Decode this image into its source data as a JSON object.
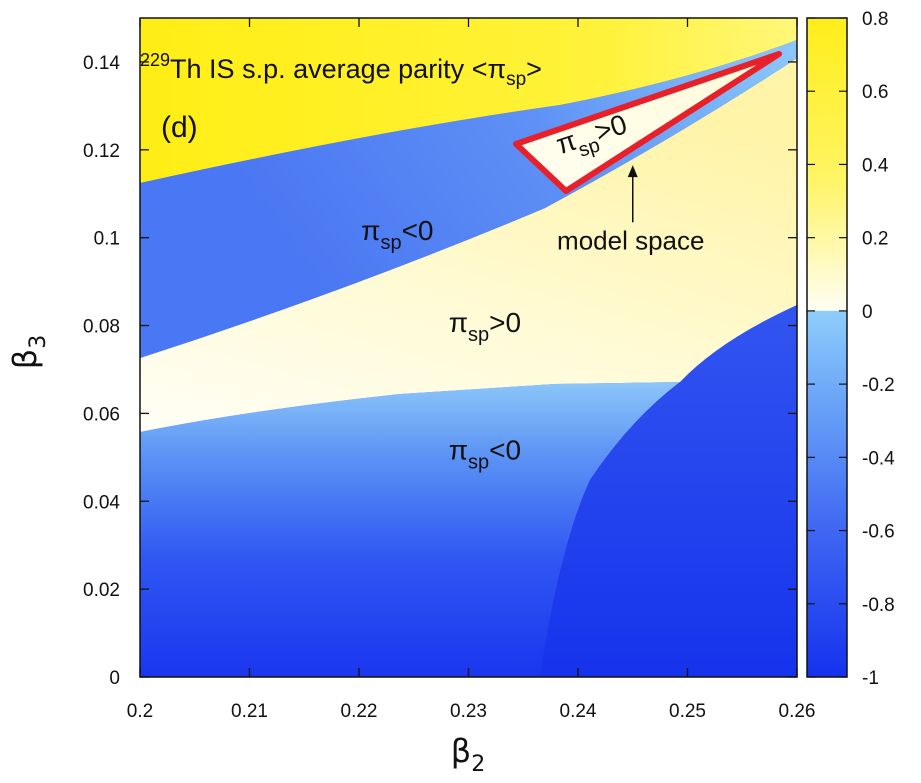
{
  "chart_data": {
    "type": "heatmap",
    "panel_label": "(d)",
    "title": {
      "superscript": "229",
      "text": "Th IS s.p. average parity <π",
      "subscript": "sp",
      "suffix": ">"
    },
    "xlabel": {
      "symbol": "β",
      "sub": "2"
    },
    "ylabel": {
      "symbol": "β",
      "sub": "3"
    },
    "xlim": [
      0.2,
      0.26
    ],
    "ylim": [
      0,
      0.15
    ],
    "x_ticks": [
      0.2,
      0.21,
      0.22,
      0.23,
      0.24,
      0.25,
      0.26
    ],
    "x_tick_labels": [
      "0.2",
      "0.21",
      "0.22",
      "0.23",
      "0.24",
      "0.25",
      "0.26"
    ],
    "y_ticks": [
      0,
      0.02,
      0.04,
      0.06,
      0.08,
      0.1,
      0.12,
      0.14
    ],
    "y_tick_labels": [
      "0",
      "0.02",
      "0.04",
      "0.06",
      "0.08",
      "0.1",
      "0.12",
      "0.14"
    ],
    "colorbar": {
      "range": [
        -1,
        0.8
      ],
      "ticks": [
        0.8,
        0.6,
        0.4,
        0.2,
        0,
        -0.2,
        -0.4,
        -0.6,
        -0.8,
        -1
      ],
      "tick_labels": [
        "0.8",
        "0.6",
        "0.4",
        "0.2",
        "0",
        "-0.2",
        "-0.4",
        "-0.6",
        "-0.8",
        "-1"
      ]
    },
    "regions": [
      {
        "name": "upper-positive",
        "parity": "positive",
        "value_range": [
          0.4,
          0.8
        ]
      },
      {
        "name": "upper-negative-band",
        "parity": "negative",
        "value_range": [
          -0.8,
          -0.2
        ]
      },
      {
        "name": "middle-positive-band",
        "parity": "positive",
        "value_range": [
          0.0,
          0.3
        ]
      },
      {
        "name": "lower-left-negative",
        "parity": "negative",
        "value_range": [
          -0.9,
          -0.2
        ]
      },
      {
        "name": "lower-right-negative",
        "parity": "negative",
        "value_range": [
          -1.0,
          -0.8
        ]
      }
    ],
    "annotations": [
      {
        "symbol": "π",
        "sub": "sp",
        "rel": "<0",
        "beta2": 0.2235,
        "beta3": 0.0995
      },
      {
        "symbol": "π",
        "sub": "sp",
        "rel": ">0",
        "beta2": 0.2315,
        "beta3": 0.0785
      },
      {
        "symbol": "π",
        "sub": "sp",
        "rel": "<0",
        "beta2": 0.2315,
        "beta3": 0.0495
      },
      {
        "symbol": "π",
        "sub": "sp",
        "rel": ">0",
        "beta2": 0.2415,
        "beta3": 0.1215,
        "rotate": -18
      }
    ],
    "model_space": {
      "label": "model space",
      "outline_color": "#e8202a",
      "polygon": [
        [
          0.2343,
          0.1214
        ],
        [
          0.2392,
          0.1115
        ],
        [
          0.2585,
          0.1421
        ]
      ],
      "arrow_from": [
        0.245,
        0.1035
      ],
      "arrow_to": [
        0.245,
        0.1165
      ]
    },
    "colors": {
      "yellow": "#ffee1a",
      "bright_yellow": "#fff740",
      "pale_yellow": "#fffbd2",
      "near_white": "#fffeee",
      "medium_blue": "#4d7af5",
      "light_blue": "#82bef8",
      "pale_blue": "#9bd0fb",
      "deep_blue": "#1a39f0"
    }
  }
}
